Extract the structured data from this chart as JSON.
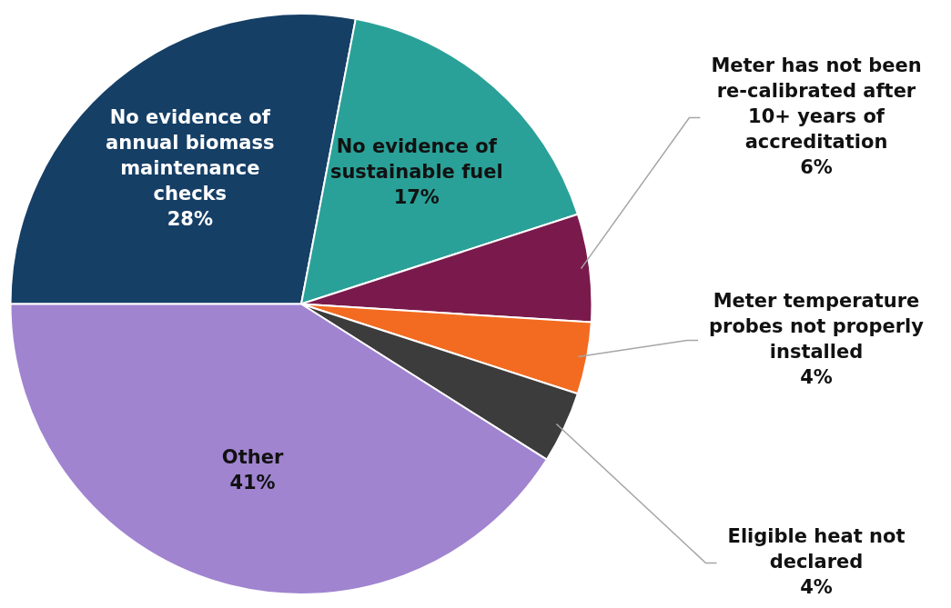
{
  "chart_data": {
    "type": "pie",
    "categories": [
      "No evidence of annual biomass maintenance checks",
      "No evidence of sustainable fuel",
      "Meter has not been re-calibrated after 10+ years of accreditation",
      "Meter temperature probes not properly installed",
      "Eligible heat not declared",
      "Other"
    ],
    "values": [
      28,
      17,
      6,
      4,
      4,
      41
    ],
    "value_labels": [
      "28%",
      "17%",
      "6%",
      "4%",
      "4%",
      "41%"
    ],
    "colors": [
      "#163f66",
      "#2aa198",
      "#7a1a4c",
      "#f26b21",
      "#3c3c3c",
      "#a084d0"
    ],
    "legend": false
  }
}
